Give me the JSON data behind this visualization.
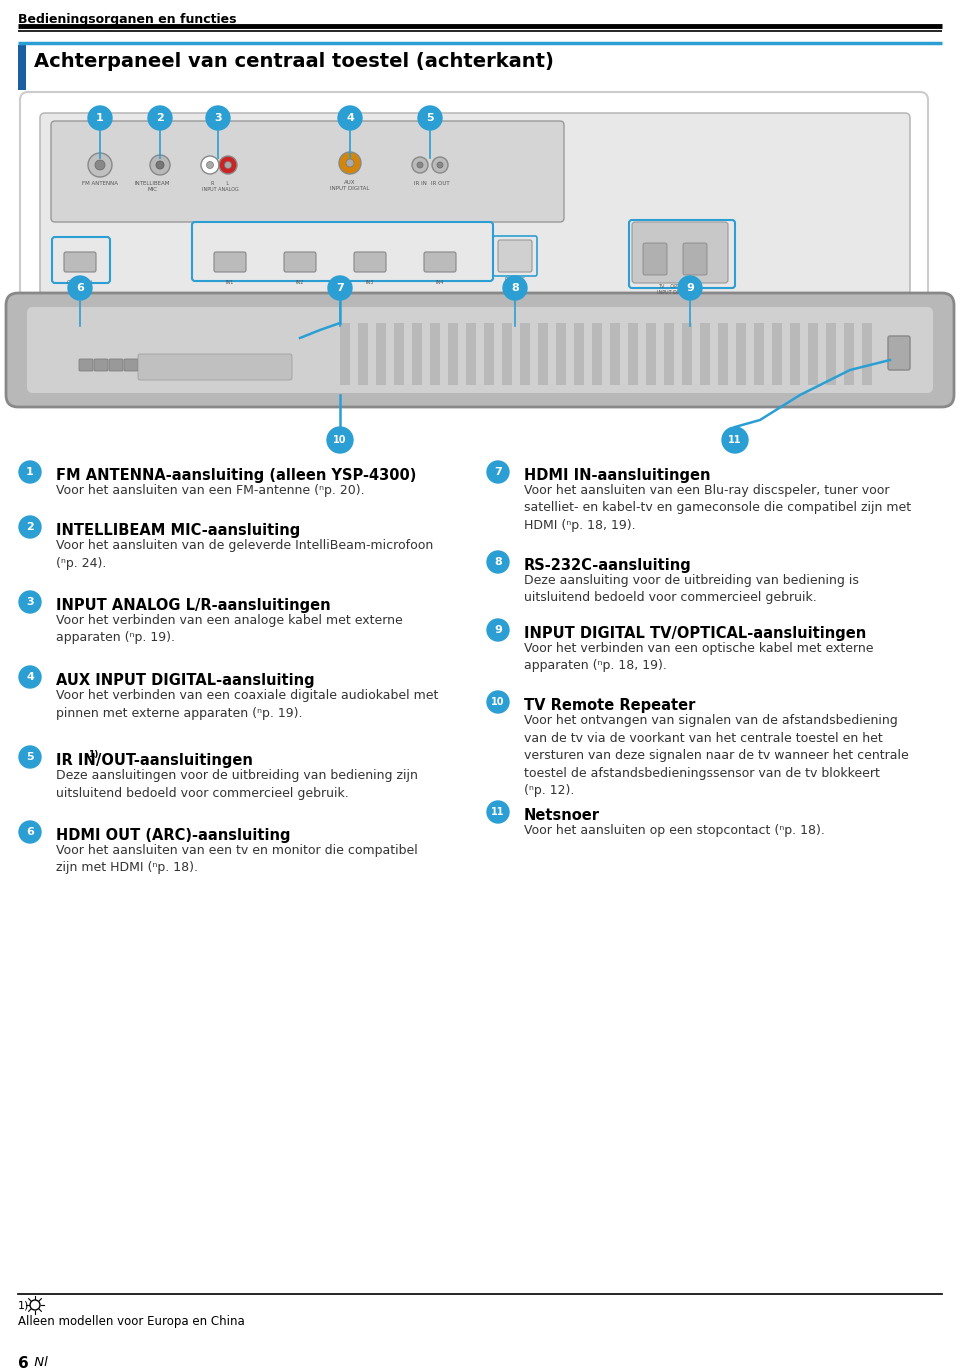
{
  "page_header": "Bedieningsorganen en functies",
  "section_title": "Achterpaneel van centraal toestel (achterkant)",
  "footnote_number": "1)",
  "footnote_text": "Alleen modellen voor Europa en China",
  "items_left": [
    {
      "number": "1",
      "title": "FM ANTENNA-aansluiting (alleen YSP-4300)",
      "body": "Voor het aansluiten van een FM-antenne (ⁿp. 20)."
    },
    {
      "number": "2",
      "title": "INTELLIBEAM MIC-aansluiting",
      "body": "Voor het aansluiten van de geleverde IntelliBeam-microfoon\n(ⁿp. 24)."
    },
    {
      "number": "3",
      "title": "INPUT ANALOG L/R-aansluitingen",
      "body": "Voor het verbinden van een analoge kabel met externe\napparaten (ⁿp. 19)."
    },
    {
      "number": "4",
      "title": "AUX INPUT DIGITAL-aansluiting",
      "body": "Voor het verbinden van een coaxiale digitale audiokabel met\npinnen met externe apparaten (ⁿp. 19)."
    },
    {
      "number": "5",
      "title_pre": "IR IN",
      "title_sup": "1)",
      "title_post": "/OUT-aansluitingen",
      "body": "Deze aansluitingen voor de uitbreiding van bediening zijn\nuitsluitend bedoeld voor commercieel gebruik."
    },
    {
      "number": "6",
      "title": "HDMI OUT (ARC)-aansluiting",
      "body": "Voor het aansluiten van een tv en monitor die compatibel\nzijn met HDMI (ⁿp. 18)."
    }
  ],
  "items_right": [
    {
      "number": "7",
      "title": "HDMI IN-aansluitingen",
      "body": "Voor het aansluiten van een Blu-ray discspeler, tuner voor\nsatelliet- en kabel-tv en gameconsole die compatibel zijn met\nHDMI (ⁿp. 18, 19)."
    },
    {
      "number": "8",
      "title": "RS-232C-aansluiting",
      "body": "Deze aansluiting voor de uitbreiding van bediening is\nuitsluitend bedoeld voor commercieel gebruik."
    },
    {
      "number": "9",
      "title": "INPUT DIGITAL TV/OPTICAL-aansluitingen",
      "body": "Voor het verbinden van een optische kabel met externe\napparaten (ⁿp. 18, 19)."
    },
    {
      "number": "10",
      "title": "TV Remote Repeater",
      "body": "Voor het ontvangen van signalen van de afstandsbediening\nvan de tv via de voorkant van het centrale toestel en het\nversturen van deze signalen naar de tv wanneer het centrale\ntoestel de afstandsbedieningssensor van de tv blokkeert\n(ⁿp. 12)."
    },
    {
      "number": "11",
      "title": "Netsnoer",
      "body": "Voor het aansluiten op een stopcontact (ⁿp. 18)."
    }
  ],
  "circle_color": "#2b9fd4",
  "circle_text_color": "#ffffff",
  "title_color": "#000000",
  "body_color": "#333333",
  "header_color": "#000000",
  "section_left_bar_color": "#1a5fa0",
  "blue_line_color": "#2b9fd4",
  "bg_color": "#ffffff",
  "device_bg": "#f0f0f0",
  "device_border": "#aaaaaa",
  "panel_bg": "#d8d8d8",
  "panel_border": "#999999",
  "soundbar_bg": "#c8c8c8",
  "hdmi_box_color": "#2b9fd4"
}
